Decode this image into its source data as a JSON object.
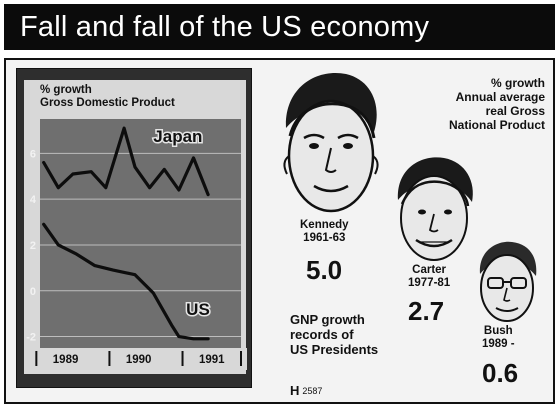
{
  "title": "Fall and fall of the US economy",
  "chart_data": {
    "type": "line",
    "ylabel": "% growth",
    "subtitle": "Gross Domestic Product",
    "y_ticks": [
      "6",
      "4",
      "2",
      "0",
      "-2"
    ],
    "ylim": [
      -2.5,
      7.5
    ],
    "x_ticks": [
      "1989",
      "1990",
      "1991"
    ],
    "series": [
      {
        "name": "Japan",
        "x": [
          1988.75,
          1988.95,
          1989.15,
          1989.4,
          1989.6,
          1989.85,
          1990.0,
          1990.2,
          1990.4,
          1990.6,
          1990.8,
          1991.0
        ],
        "values": [
          5.6,
          4.5,
          5.1,
          5.2,
          4.5,
          7.1,
          5.4,
          4.5,
          5.3,
          4.4,
          5.8,
          4.2
        ]
      },
      {
        "name": "US",
        "x": [
          1988.75,
          1988.95,
          1989.2,
          1989.45,
          1989.7,
          1990.0,
          1990.25,
          1990.5,
          1990.6,
          1990.8,
          1991.0
        ],
        "values": [
          2.9,
          2.0,
          1.6,
          1.1,
          0.9,
          0.7,
          -0.1,
          -1.5,
          -2.0,
          -2.1,
          -2.1
        ]
      }
    ],
    "series_labels": [
      "Japan",
      "US"
    ],
    "legend": "inline labels"
  },
  "presidents_panel": {
    "ylabel": "% growth",
    "description_lines": [
      "Annual average",
      "real Gross",
      "National Product"
    ],
    "caption_lines": [
      "GNP growth",
      "records of",
      "US Presidents"
    ],
    "presidents": [
      {
        "name": "Kennedy",
        "years": "1961-63",
        "value": "5.0"
      },
      {
        "name": "Carter",
        "years": "1977-81",
        "value": "2.7"
      },
      {
        "name": "Bush",
        "years": "1989 -",
        "value": "0.6"
      }
    ]
  },
  "credit": {
    "logo": "H",
    "code": "2587"
  }
}
